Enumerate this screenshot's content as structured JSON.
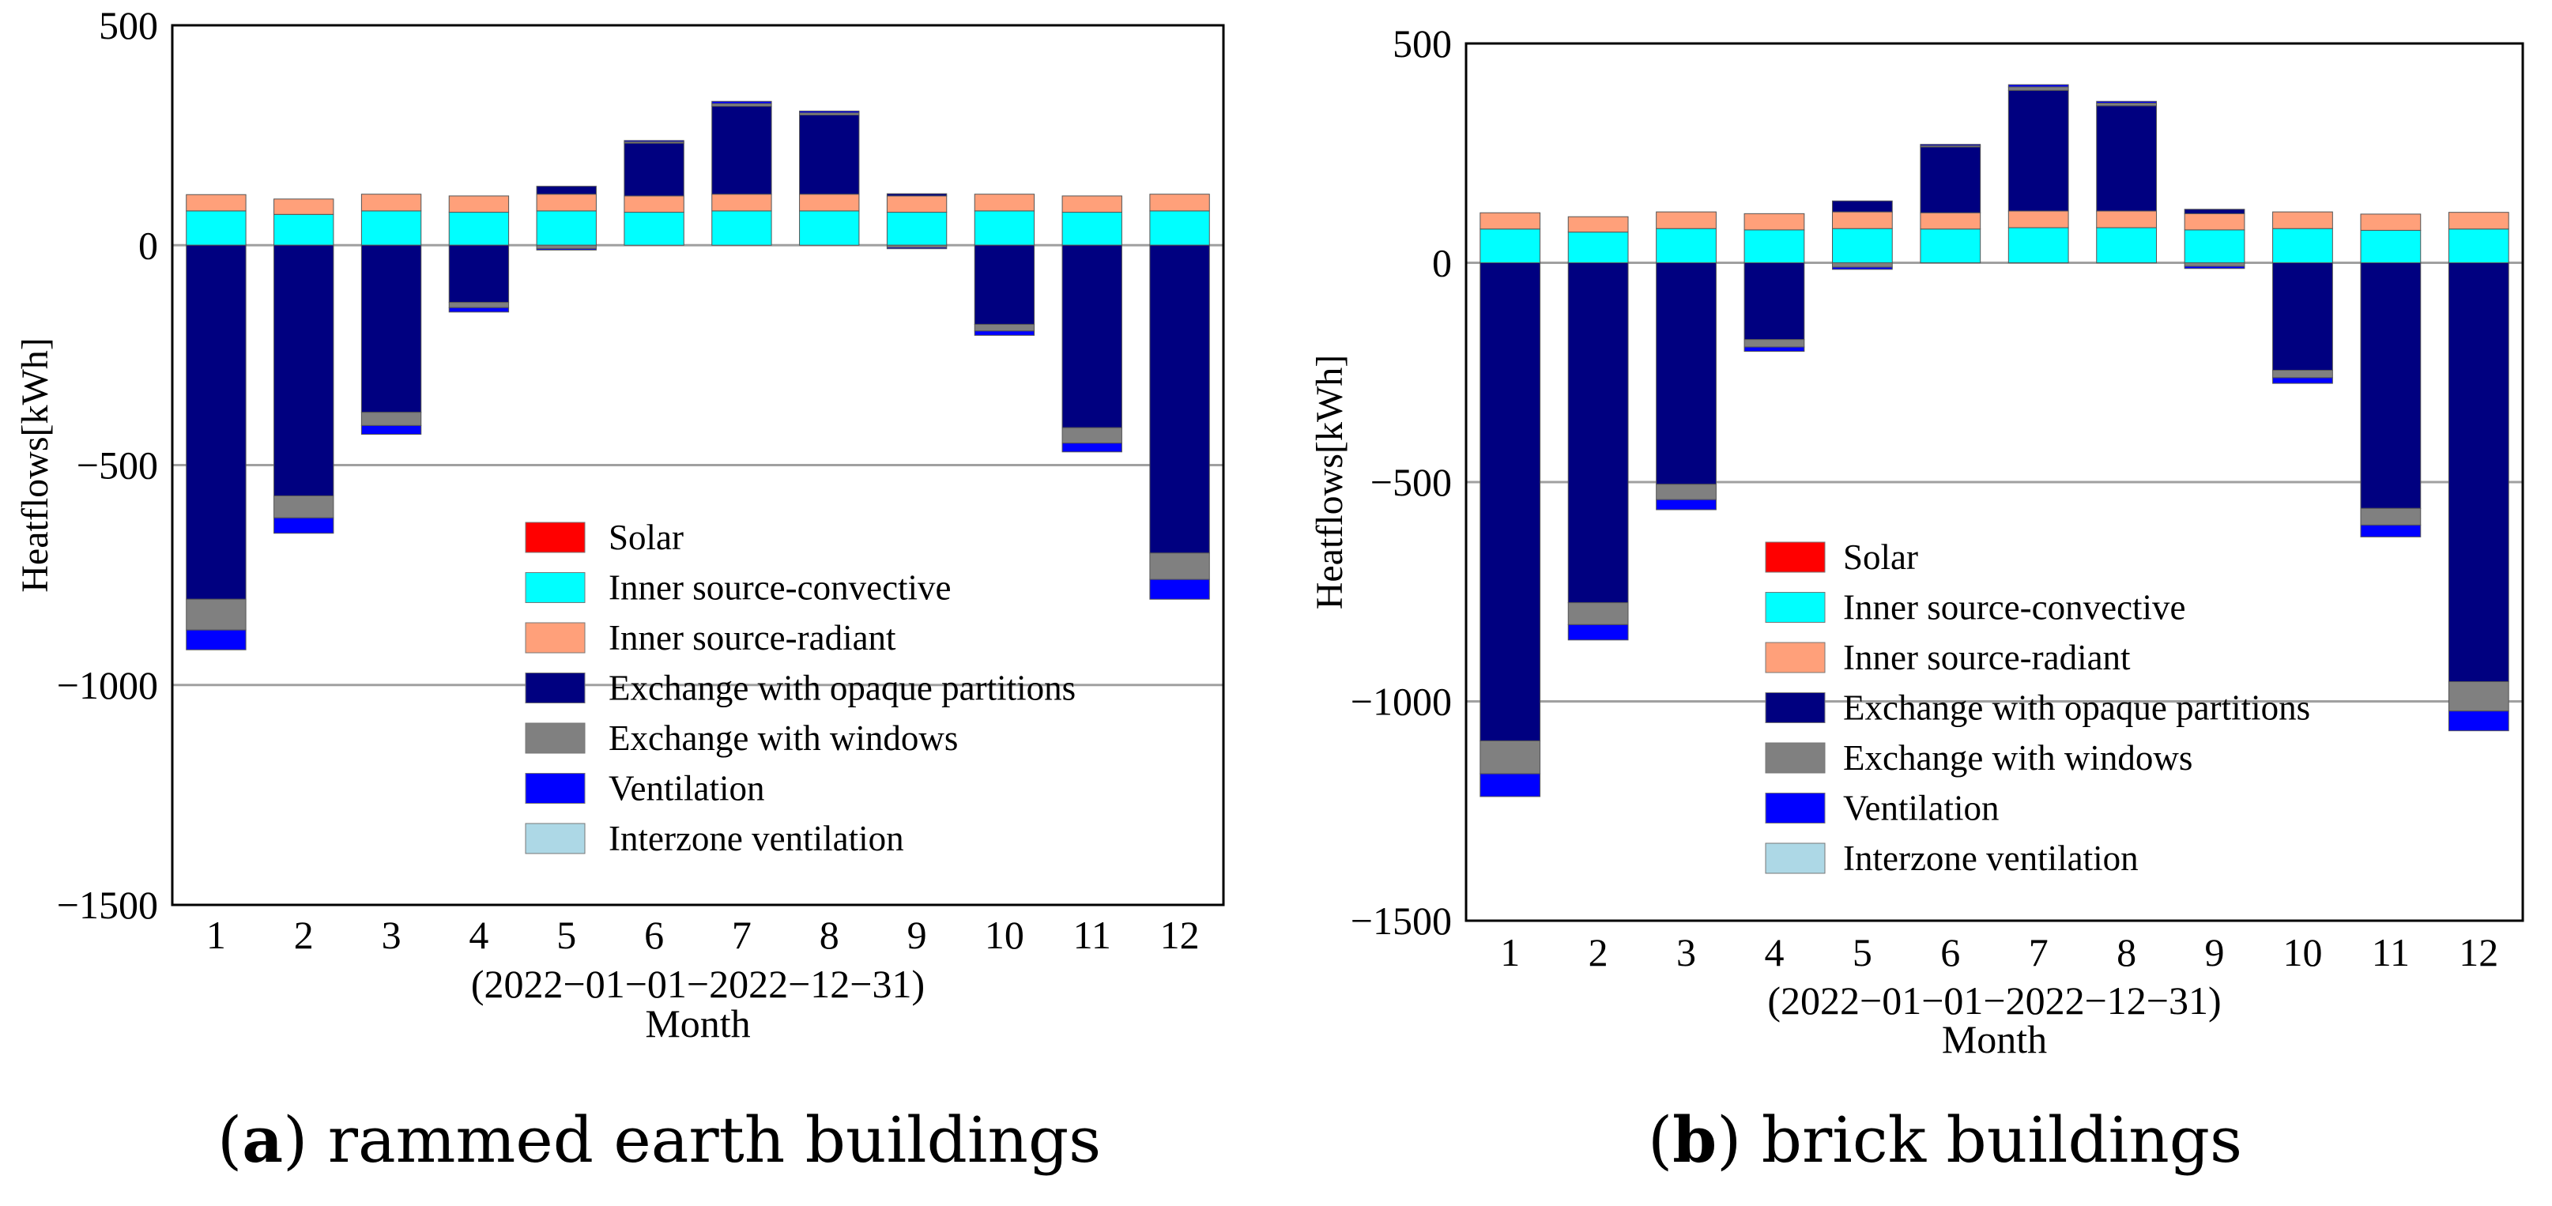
{
  "colors": {
    "solar": "#ff0000",
    "inner_convective": "#00ffff",
    "inner_radiant": "#ffa07a",
    "opaque": "#000080",
    "windows": "#808080",
    "ventilation": "#0000ff",
    "interzone": "#add8e6",
    "grid": "#a0a0a0"
  },
  "captions": [
    {
      "letter": "a",
      "text": ") rammed earth buildings",
      "open": "("
    },
    {
      "letter": "b",
      "text": ") brick buildings",
      "open": "("
    }
  ],
  "chart_data": [
    {
      "type": "bar",
      "stacked": true,
      "title": "",
      "ylabel": "Heatflows[kWh]",
      "xlabel": "Month",
      "date_range": "(2022−01−01−2022−12−31)",
      "ylim": [
        -1500,
        500
      ],
      "yticks": [
        500,
        0,
        -500,
        -1000,
        -1500
      ],
      "ytick_labels": [
        "500",
        "0",
        "−500",
        "−1000",
        "−1500"
      ],
      "grid": "horizontal",
      "legend_position": "lower-right",
      "categories": [
        "1",
        "2",
        "3",
        "4",
        "5",
        "6",
        "7",
        "8",
        "9",
        "10",
        "11",
        "12"
      ],
      "series": [
        {
          "name": "Solar",
          "key": "solar",
          "values": [
            0,
            0,
            0,
            0,
            0,
            0,
            0,
            0,
            0,
            0,
            0,
            0
          ]
        },
        {
          "name": "Inner source-convective",
          "key": "inner_convective",
          "values": [
            78,
            70,
            78,
            75,
            78,
            75,
            78,
            78,
            75,
            78,
            75,
            78
          ]
        },
        {
          "name": "Inner source-radiant",
          "key": "inner_radiant",
          "values": [
            37,
            35,
            38,
            37,
            38,
            37,
            38,
            38,
            37,
            38,
            37,
            38
          ]
        },
        {
          "name": "Exchange with opaque partitions",
          "key": "opaque",
          "values": [
            -805,
            -570,
            -380,
            -130,
            18,
            120,
            200,
            180,
            5,
            -180,
            -415,
            -700
          ]
        },
        {
          "name": "Exchange with windows",
          "key": "windows",
          "values": [
            -70,
            -50,
            -30,
            -12,
            -8,
            3,
            6,
            5,
            -5,
            -15,
            -35,
            -60
          ]
        },
        {
          "name": "Ventilation",
          "key": "ventilation",
          "values": [
            -45,
            -35,
            -20,
            -10,
            -3,
            3,
            5,
            4,
            -3,
            -10,
            -20,
            -45
          ]
        },
        {
          "name": "Interzone ventilation",
          "key": "interzone",
          "values": [
            0,
            0,
            0,
            0,
            0,
            0,
            0,
            0,
            0,
            0,
            0,
            0
          ]
        }
      ]
    },
    {
      "type": "bar",
      "stacked": true,
      "title": "",
      "ylabel": "Heatflows[kWh]",
      "xlabel": "Month",
      "date_range": "(2022−01−01−2022−12−31)",
      "ylim": [
        -1500,
        500
      ],
      "yticks": [
        500,
        0,
        -500,
        -1000,
        -1500
      ],
      "ytick_labels": [
        "500",
        "0",
        "−500",
        "−1000",
        "−1500"
      ],
      "grid": "horizontal",
      "legend_position": "lower-right",
      "categories": [
        "1",
        "2",
        "3",
        "4",
        "5",
        "6",
        "7",
        "8",
        "9",
        "10",
        "11",
        "12"
      ],
      "series": [
        {
          "name": "Solar",
          "key": "solar",
          "values": [
            0,
            0,
            0,
            0,
            0,
            0,
            0,
            0,
            0,
            0,
            0,
            0
          ]
        },
        {
          "name": "Inner source-convective",
          "key": "inner_convective",
          "values": [
            77,
            70,
            78,
            75,
            78,
            77,
            80,
            80,
            75,
            78,
            74,
            77
          ]
        },
        {
          "name": "Inner source-radiant",
          "key": "inner_radiant",
          "values": [
            37,
            35,
            38,
            37,
            38,
            37,
            38,
            38,
            37,
            38,
            37,
            38
          ]
        },
        {
          "name": "Exchange with opaque partitions",
          "key": "opaque",
          "values": [
            -1090,
            -775,
            -505,
            -175,
            25,
            150,
            275,
            240,
            10,
            -245,
            -560,
            -955
          ]
        },
        {
          "name": "Exchange with windows",
          "key": "windows",
          "values": [
            -75,
            -50,
            -35,
            -17,
            -10,
            3,
            8,
            6,
            -8,
            -17,
            -38,
            -67
          ]
        },
        {
          "name": "Ventilation",
          "key": "ventilation",
          "values": [
            -52,
            -35,
            -23,
            -10,
            -5,
            3,
            5,
            4,
            -5,
            -13,
            -27,
            -45
          ]
        },
        {
          "name": "Interzone ventilation",
          "key": "interzone",
          "values": [
            0,
            0,
            0,
            0,
            0,
            0,
            0,
            0,
            0,
            0,
            0,
            0
          ]
        }
      ]
    }
  ]
}
